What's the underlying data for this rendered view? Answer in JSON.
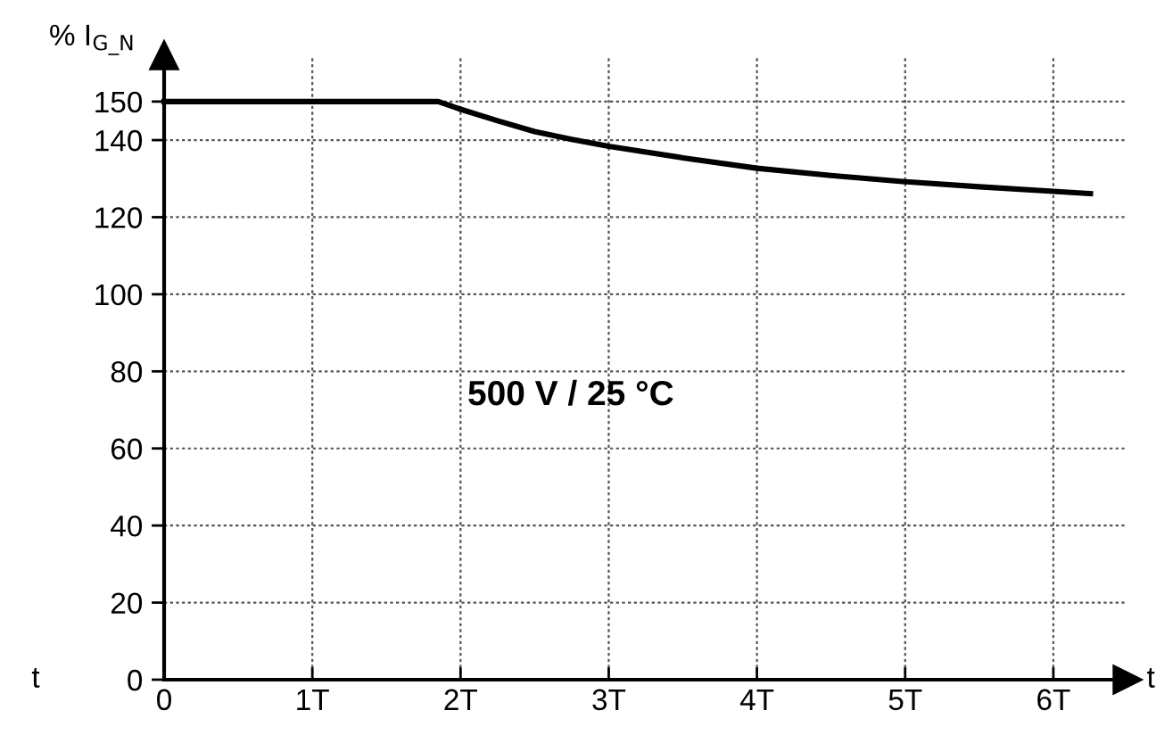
{
  "chart_data": {
    "type": "line",
    "ylabel": "% I$_{G_N}$",
    "xlabel": "t",
    "annotations": [
      "t",
      "500 V / 25 °C"
    ],
    "series": [
      {
        "color": "#000000",
        "x": [
          0,
          1.85,
          2.0,
          2.25,
          2.5,
          2.75,
          3.0,
          3.5,
          4.0,
          4.5,
          5.0,
          5.5,
          6.0,
          6.25
        ],
        "values": [
          150,
          150,
          148,
          145,
          142.2,
          140.2,
          138.4,
          135.4,
          132.7,
          130.8,
          129.2,
          127.9,
          126.7,
          126.1
        ]
      }
    ],
    "xlim": [
      0,
      6.5
    ],
    "ylim": [
      0,
      162
    ],
    "xticks": [
      0,
      {
        "value": 1,
        "label": "1T"
      },
      {
        "value": 2,
        "label": "2T"
      },
      {
        "value": 3,
        "label": "3T"
      },
      {
        "value": 4,
        "label": "4T"
      },
      {
        "value": 5,
        "label": "5T"
      },
      {
        "value": 6,
        "label": "6T"
      }
    ],
    "yticks": [
      0,
      20,
      40,
      60,
      80,
      100,
      120,
      140,
      150
    ],
    "grid": true,
    "legend": false,
    "marker": "none",
    "line_style": "solid"
  }
}
